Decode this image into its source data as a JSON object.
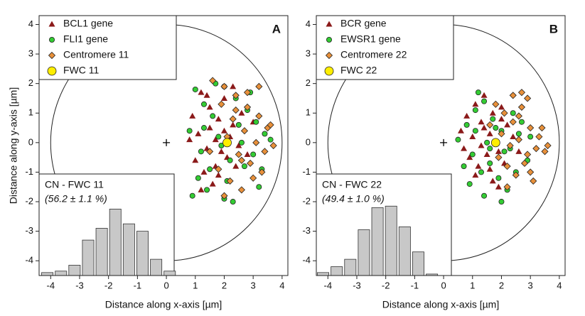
{
  "chart_data": [
    {
      "type": "scatter",
      "label": "A",
      "xlabel": "Distance along x-axis [µm]",
      "ylabel": "Distance along y-axis [µm]",
      "xlim": [
        -4.4,
        4.2
      ],
      "ylim": [
        -4.5,
        4.3
      ],
      "xticks": [
        -4,
        -3,
        -2,
        -1,
        0,
        1,
        2,
        3,
        4
      ],
      "yticks": [
        -4,
        -3,
        -2,
        -1,
        0,
        1,
        2,
        3,
        4
      ],
      "legend": "upper left",
      "circle": {
        "cx": 0,
        "cy": 0,
        "r": 4
      },
      "series": [
        {
          "name": "BCL1 gene",
          "color": "#8b1a1a",
          "marker": "triangle",
          "x": [
            1.2,
            1.5,
            1.8,
            2.0,
            2.3,
            1.1,
            1.4,
            1.7,
            2.1,
            2.4,
            0.9,
            1.3,
            1.6,
            1.9,
            2.2,
            2.6,
            1.0,
            1.5,
            1.8,
            2.5,
            1.4,
            2.0,
            2.8,
            1.2,
            1.7,
            3.0,
            0.8,
            2.3
          ],
          "y": [
            1.7,
            1.2,
            0.8,
            1.5,
            0.6,
            0.3,
            -0.2,
            0.1,
            -0.5,
            -0.8,
            0.9,
            -1.0,
            -1.4,
            -0.3,
            0.2,
            1.0,
            -0.6,
            0.5,
            -1.1,
            -0.1,
            1.6,
            0.4,
            -0.4,
            -1.6,
            -0.8,
            0.7,
            0.1,
            1.9
          ]
        },
        {
          "name": "FLI1 gene",
          "color": "#33cc33",
          "marker": "circle",
          "x": [
            1.0,
            1.3,
            1.6,
            2.0,
            2.4,
            2.8,
            3.1,
            0.8,
            1.2,
            1.8,
            2.2,
            2.6,
            3.0,
            3.4,
            1.1,
            1.5,
            2.1,
            2.7,
            3.2,
            0.9,
            1.4,
            1.9,
            2.5,
            2.9,
            1.7,
            2.3,
            3.3,
            1.3,
            2.0,
            3.6
          ],
          "y": [
            1.8,
            1.3,
            0.9,
            1.9,
            1.5,
            1.1,
            0.7,
            0.4,
            -0.3,
            0.2,
            -0.6,
            0.0,
            -0.4,
            0.3,
            -1.2,
            -0.9,
            -1.3,
            -0.8,
            -1.5,
            -1.8,
            -1.6,
            -0.1,
            0.6,
            1.7,
            2.0,
            -2.0,
            -0.9,
            0.5,
            -1.9,
            0.1
          ]
        },
        {
          "name": "Centromere 11",
          "color": "#e8903a",
          "marker": "diamond",
          "x": [
            1.6,
            2.0,
            2.4,
            2.8,
            3.2,
            3.5,
            1.9,
            2.3,
            2.7,
            3.1,
            3.4,
            3.7,
            2.1,
            2.5,
            2.9,
            3.3,
            1.8,
            2.2,
            2.6,
            3.0,
            3.6,
            2.4,
            2.8,
            3.2,
            1.5,
            2.0,
            2.6
          ],
          "y": [
            2.1,
            1.9,
            1.6,
            1.2,
            0.9,
            0.5,
            1.3,
            0.8,
            0.4,
            0.0,
            -0.3,
            -0.1,
            0.2,
            -0.4,
            -0.7,
            -1.0,
            -0.9,
            -1.3,
            -1.6,
            -1.2,
            0.6,
            1.1,
            1.7,
            1.9,
            -0.3,
            -1.8,
            -0.6
          ]
        },
        {
          "name": "FWC 11",
          "color": "#ffee00",
          "marker": "big-circle",
          "x": [
            2.1
          ],
          "y": [
            0.0
          ]
        }
      ],
      "inset": {
        "type": "histogram",
        "title": "CN - FWC 11",
        "subtitle": "(56.2 ± 1.1 %)",
        "color": "#c8c8c8",
        "bins": [
          -4.35,
          -3.88,
          -3.41,
          -2.94,
          -2.47,
          -2.0,
          -1.53,
          -1.06,
          -0.59,
          -0.12,
          0.35
        ],
        "values": [
          -4.4,
          -4.35,
          -4.15,
          -3.3,
          -2.9,
          -2.25,
          -2.75,
          -3.0,
          -3.95,
          -4.35
        ]
      }
    },
    {
      "type": "scatter",
      "label": "B",
      "xlabel": "Distance along x-axis [µm]",
      "xlim": [
        -4.4,
        4.2
      ],
      "ylim": [
        -4.5,
        4.3
      ],
      "xticks": [
        -4,
        -3,
        -2,
        -1,
        0,
        1,
        2,
        3,
        4
      ],
      "yticks": [
        -4,
        -3,
        -2,
        -1,
        0,
        1,
        2,
        3,
        4
      ],
      "legend": "upper left",
      "circle": {
        "cx": 0,
        "cy": 0,
        "r": 4
      },
      "series": [
        {
          "name": "BCR gene",
          "color": "#8b1a1a",
          "marker": "triangle",
          "x": [
            0.8,
            1.1,
            1.4,
            1.7,
            2.0,
            1.0,
            1.3,
            1.6,
            1.9,
            2.2,
            0.6,
            0.9,
            1.2,
            1.5,
            1.8,
            2.1,
            1.1,
            1.4,
            1.7,
            2.4,
            1.6,
            2.0,
            0.7,
            1.3,
            1.9,
            2.6
          ],
          "y": [
            0.9,
            1.3,
            0.5,
            1.0,
            1.2,
            0.2,
            -0.1,
            0.3,
            -0.3,
            0.6,
            0.4,
            -0.5,
            -0.8,
            -0.4,
            0.0,
            -0.7,
            -1.1,
            1.6,
            -1.3,
            0.2,
            -0.9,
            0.8,
            -0.2,
            0.7,
            -1.5,
            -0.3
          ]
        },
        {
          "name": "EWSR1 gene",
          "color": "#33cc33",
          "marker": "circle",
          "x": [
            0.5,
            0.8,
            1.1,
            1.4,
            1.7,
            2.0,
            2.3,
            2.6,
            2.9,
            1.0,
            1.3,
            1.6,
            1.9,
            2.2,
            2.5,
            0.7,
            1.2,
            1.5,
            1.8,
            2.1,
            2.4,
            2.7,
            0.9,
            1.4,
            2.0,
            1.6,
            3.0,
            1.1
          ],
          "y": [
            0.1,
            0.6,
            1.1,
            1.4,
            0.8,
            0.4,
            -0.2,
            0.3,
            -0.6,
            -0.4,
            -1.0,
            -0.7,
            -1.2,
            -1.6,
            -1.0,
            -0.8,
            1.7,
            0.0,
            0.5,
            -0.3,
            1.0,
            0.7,
            -1.4,
            -1.8,
            -2.0,
            -0.2,
            0.2,
            0.4
          ]
        },
        {
          "name": "Centromere 22",
          "color": "#e8903a",
          "marker": "diamond",
          "x": [
            1.8,
            2.1,
            2.4,
            2.7,
            3.0,
            3.3,
            3.6,
            2.0,
            2.3,
            2.6,
            2.9,
            3.2,
            3.5,
            1.9,
            2.2,
            2.5,
            2.8,
            3.1,
            2.4,
            2.7,
            3.0,
            2.2,
            2.6,
            1.6,
            3.4,
            2.9
          ],
          "y": [
            1.3,
            1.0,
            0.7,
            1.2,
            0.5,
            0.2,
            -0.1,
            0.3,
            -0.1,
            0.1,
            -0.4,
            -0.2,
            -0.3,
            -0.5,
            -0.8,
            -1.1,
            -0.7,
            -1.3,
            1.6,
            1.7,
            -1.0,
            -1.5,
            0.9,
            0.6,
            0.5,
            1.5
          ]
        },
        {
          "name": "FWC 22",
          "color": "#ffee00",
          "marker": "big-circle",
          "x": [
            1.8
          ],
          "y": [
            0.0
          ]
        }
      ],
      "inset": {
        "type": "histogram",
        "title": "CN - FWC 22",
        "subtitle": "(49.4 ± 1.0 %)",
        "color": "#c8c8c8",
        "bins": [
          -4.4,
          -3.93,
          -3.46,
          -2.99,
          -2.52,
          -2.05,
          -1.58,
          -1.11,
          -0.64,
          -0.17
        ],
        "values": [
          -4.4,
          -4.2,
          -3.95,
          -2.95,
          -2.2,
          -2.15,
          -2.85,
          -3.7,
          -4.45
        ]
      }
    }
  ]
}
